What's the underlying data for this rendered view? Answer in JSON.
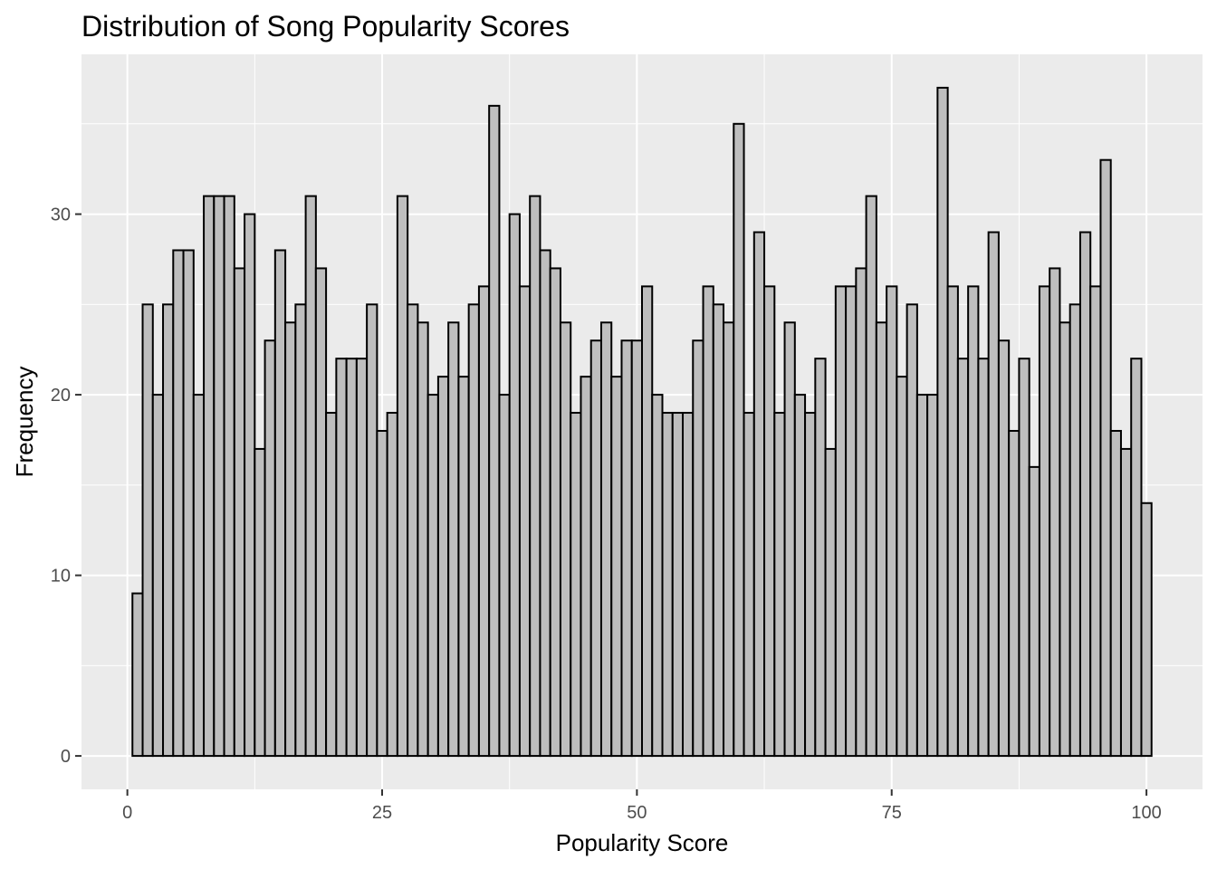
{
  "chart_data": {
    "type": "bar",
    "title": "Distribution of Song Popularity Scores",
    "xlabel": "Popularity Score",
    "ylabel": "Frequency",
    "x_ticks": [
      "0",
      "25",
      "50",
      "75",
      "100"
    ],
    "y_ticks": [
      "0",
      "10",
      "20",
      "30"
    ],
    "xlim": [
      -4.5,
      105.5
    ],
    "ylim": [
      -1.85,
      38.85
    ],
    "bin_width": 1,
    "bin_centers_start": 1,
    "values": [
      9,
      25,
      20,
      25,
      28,
      28,
      20,
      31,
      31,
      31,
      27,
      30,
      17,
      23,
      28,
      24,
      25,
      31,
      27,
      19,
      22,
      22,
      22,
      25,
      18,
      19,
      31,
      25,
      24,
      20,
      21,
      24,
      21,
      25,
      26,
      36,
      20,
      30,
      26,
      31,
      28,
      27,
      24,
      19,
      21,
      23,
      24,
      21,
      23,
      23,
      26,
      20,
      19,
      19,
      19,
      23,
      26,
      25,
      24,
      35,
      19,
      29,
      26,
      19,
      24,
      20,
      19,
      22,
      17,
      26,
      26,
      27,
      31,
      24,
      26,
      21,
      25,
      20,
      20,
      37,
      26,
      22,
      26,
      22,
      29,
      23,
      18,
      22,
      16,
      26,
      27,
      24,
      25,
      29,
      26,
      33,
      18,
      17,
      22,
      14
    ],
    "grid": true,
    "bar_fill": "#bebebe",
    "bar_stroke": "#000000",
    "panel_background": "#ebebeb",
    "grid_color": "#ffffff"
  }
}
